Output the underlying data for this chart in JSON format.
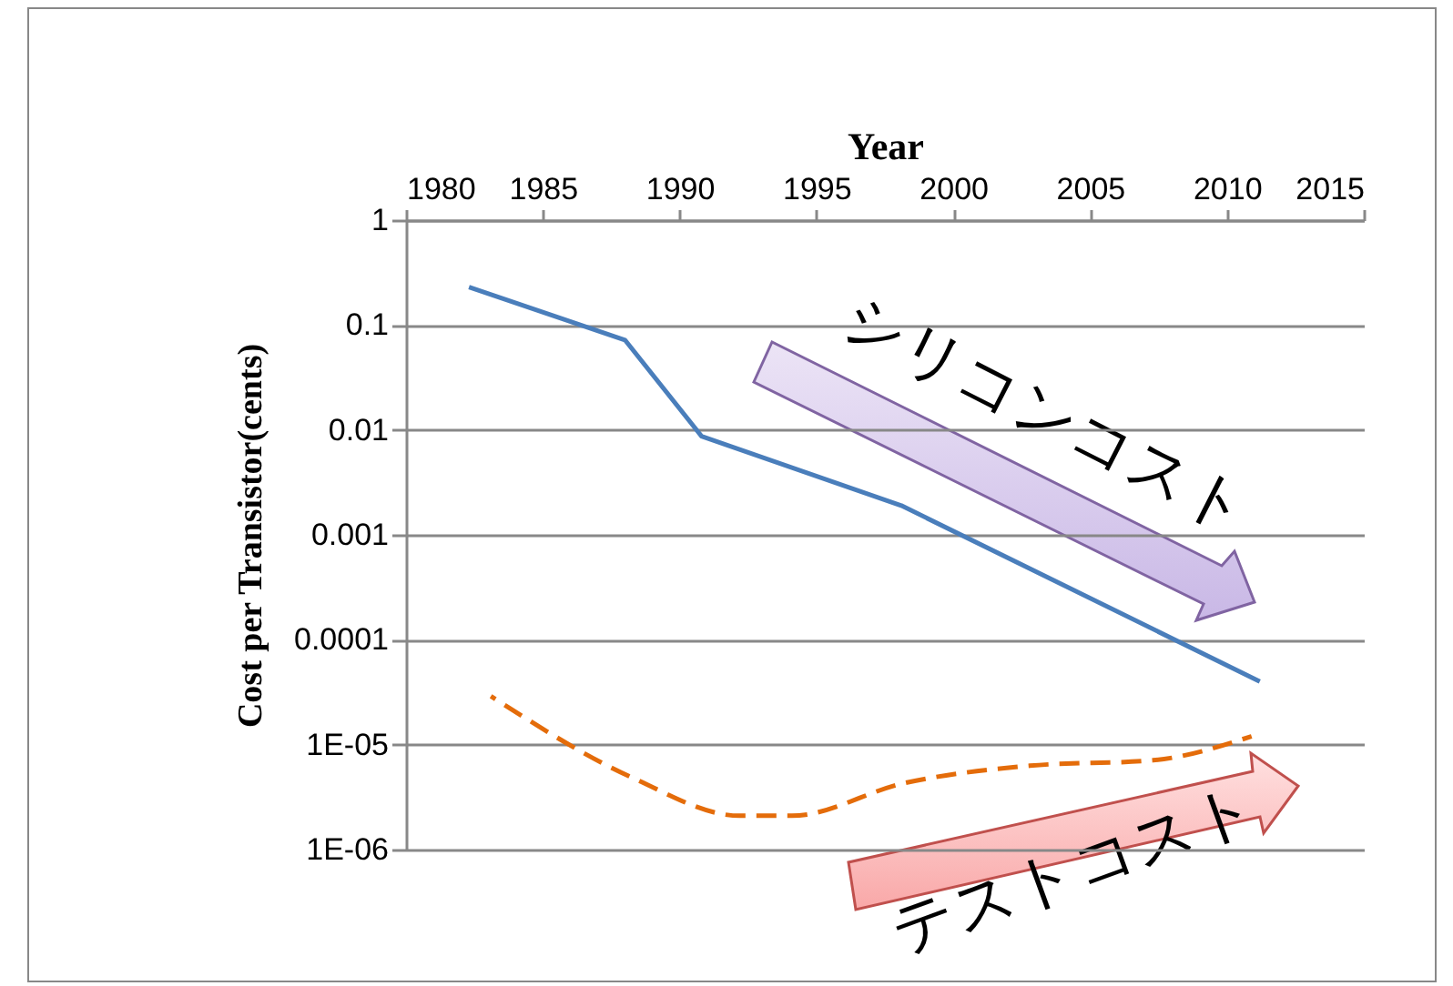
{
  "chart_data": {
    "type": "line",
    "xlabel": "Year",
    "ylabel": "Cost per Transistor(cents)",
    "xlim": [
      1980,
      2015
    ],
    "xticks": [
      1980,
      1985,
      1990,
      1995,
      2000,
      2005,
      2010,
      2015
    ],
    "ylim": [
      1e-06,
      1
    ],
    "yticks": [
      1,
      0.1,
      0.01,
      0.001,
      0.0001,
      {
        "value": 1e-05,
        "label": "1E-05"
      },
      {
        "value": 1e-06,
        "label": "1E-06"
      }
    ],
    "log": "y",
    "grid": "y",
    "series": [
      {
        "color": "#4a7ebb",
        "line_style": "solid",
        "x": [
          1982.3,
          1988.0,
          1990.8,
          1998.1,
          2011.2
        ],
        "values": [
          0.23,
          0.072,
          0.0087,
          0.0019,
          4e-05
        ]
      },
      {
        "color": "#e46c0a",
        "line_style": "dashed",
        "x": [
          1983.1,
          1988.3,
          1992.2,
          1994.1,
          1998.2,
          2002.8,
          2007.3,
          2010.9
        ],
        "values": [
          2.9e-05,
          4.8e-06,
          2.1e-06,
          2.1e-06,
          4.3e-06,
          6.3e-06,
          7.1e-06,
          1.2e-05
        ]
      }
    ],
    "annotations": [
      "シリコンコスト",
      "テストコスト"
    ]
  }
}
